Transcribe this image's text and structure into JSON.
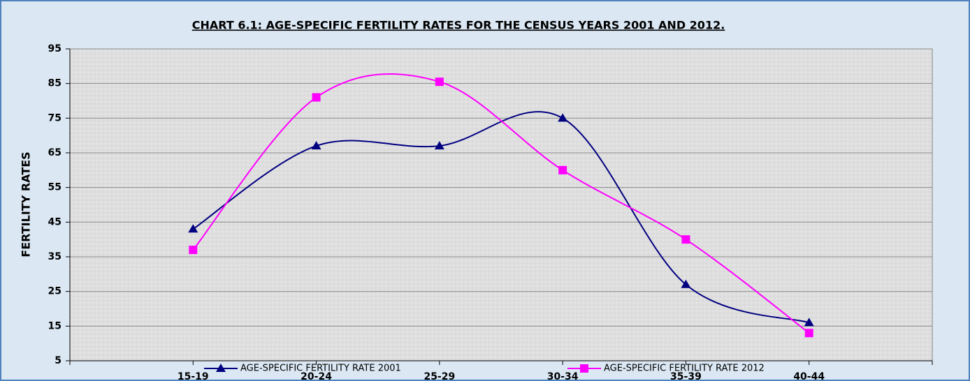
{
  "chart_data": {
    "type": "line",
    "title": "CHART 6.1: AGE-SPECIFIC FERTILITY RATES FOR THE CENSUS YEARS 2001 AND 2012.",
    "y_label": "FERTILITY RATES",
    "categories": [
      "15-19",
      "20-24",
      "25-29",
      "30-34",
      "35-39",
      "40-44"
    ],
    "series": [
      {
        "name": "AGE-SPECIFIC FERTILITY RATE 2001",
        "color": "#000080",
        "marker": "triangle",
        "values": [
          43,
          67,
          67,
          75,
          27,
          16
        ]
      },
      {
        "name": "AGE-SPECIFIC FERTILITY RATE 2012",
        "color": "#ff00ff",
        "marker": "square",
        "values": [
          37,
          81,
          85.5,
          60,
          40,
          13
        ]
      }
    ],
    "ylim": [
      5,
      95
    ],
    "yticks": [
      5,
      15,
      25,
      35,
      45,
      55,
      65,
      75,
      85,
      95
    ],
    "grid": true,
    "smooth": true,
    "legend": "bottom"
  }
}
